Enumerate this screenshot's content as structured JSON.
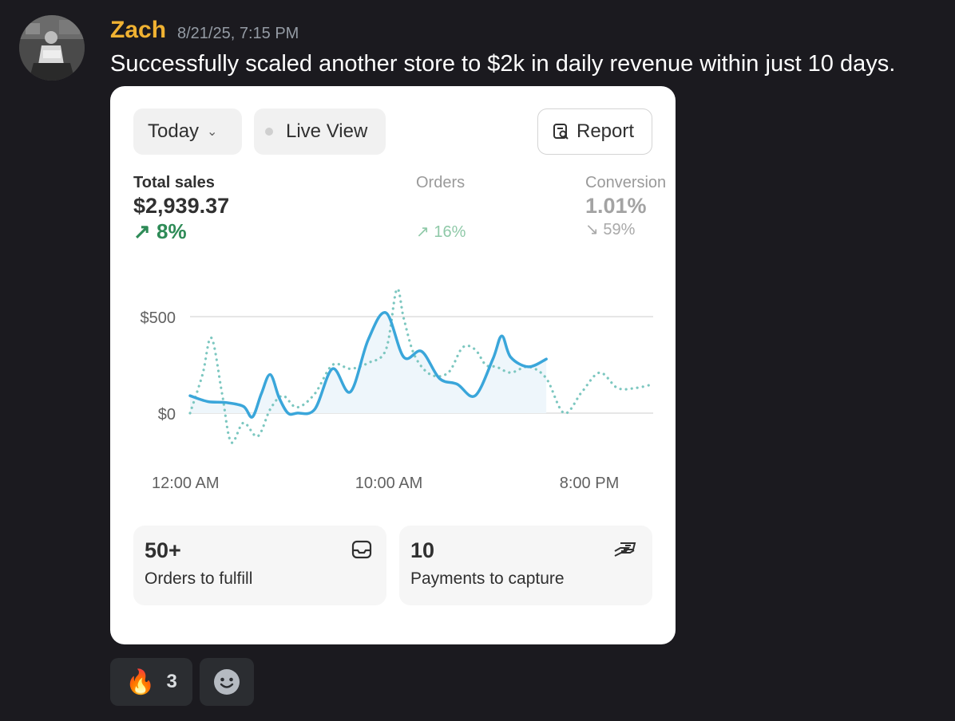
{
  "message": {
    "author": "Zach",
    "timestamp": "8/21/25, 7:15 PM",
    "text": "Successfully scaled another store to $2k in daily revenue within just 10 days.",
    "author_color": "#f0b232"
  },
  "card": {
    "date_filter": "Today",
    "live_view_label": "Live View",
    "report_label": "Report",
    "metrics": [
      {
        "label": "Total sales",
        "value": "$2,939.37",
        "change": "8%",
        "direction": "up"
      },
      {
        "label": "Orders",
        "value": "",
        "change": "16%",
        "direction": "up"
      },
      {
        "label": "Conversion",
        "value": "1.01%",
        "change": "59%",
        "direction": "down"
      }
    ],
    "tiles": [
      {
        "value": "50+",
        "label": "Orders to fulfill",
        "icon": "inbox-icon"
      },
      {
        "value": "10",
        "label": "Payments to capture",
        "icon": "hand-cash-icon"
      }
    ]
  },
  "chart_data": {
    "type": "line",
    "x_ticks": [
      "12:00 AM",
      "10:00 AM",
      "8:00 PM"
    ],
    "y_ticks": [
      "$500",
      "$0"
    ],
    "ylim": [
      -200,
      700
    ],
    "grid": true,
    "series": [
      {
        "style": "solid",
        "color": "#3aa6da",
        "points": [
          [
            0,
            90
          ],
          [
            1,
            60
          ],
          [
            2,
            55
          ],
          [
            3,
            35
          ],
          [
            3.5,
            -20
          ],
          [
            4,
            100
          ],
          [
            4.5,
            200
          ],
          [
            5,
            80
          ],
          [
            5.5,
            0
          ],
          [
            6,
            0
          ],
          [
            7,
            20
          ],
          [
            8,
            230
          ],
          [
            9,
            110
          ],
          [
            10,
            380
          ],
          [
            11,
            520
          ],
          [
            12,
            290
          ],
          [
            13,
            320
          ],
          [
            14,
            180
          ],
          [
            15,
            150
          ],
          [
            16,
            90
          ],
          [
            17,
            280
          ],
          [
            17.5,
            400
          ],
          [
            18,
            290
          ],
          [
            19,
            240
          ],
          [
            20,
            280
          ]
        ]
      },
      {
        "style": "dotted",
        "color": "#7cc7c0",
        "points": [
          [
            0,
            0
          ],
          [
            0.7,
            200
          ],
          [
            1.2,
            390
          ],
          [
            1.8,
            100
          ],
          [
            2.3,
            -150
          ],
          [
            3,
            -50
          ],
          [
            3.8,
            -120
          ],
          [
            4.5,
            20
          ],
          [
            5.2,
            90
          ],
          [
            6,
            30
          ],
          [
            7,
            100
          ],
          [
            8,
            250
          ],
          [
            9,
            230
          ],
          [
            10,
            260
          ],
          [
            11,
            330
          ],
          [
            11.6,
            640
          ],
          [
            12,
            490
          ],
          [
            12.6,
            300
          ],
          [
            13.5,
            200
          ],
          [
            14.5,
            210
          ],
          [
            15.3,
            340
          ],
          [
            16,
            330
          ],
          [
            16.6,
            250
          ],
          [
            17.2,
            240
          ],
          [
            18,
            210
          ],
          [
            19,
            240
          ],
          [
            20,
            180
          ],
          [
            21,
            0
          ],
          [
            22,
            110
          ],
          [
            23,
            210
          ],
          [
            24,
            130
          ],
          [
            25,
            130
          ],
          [
            26,
            150
          ]
        ]
      }
    ]
  },
  "reactions": [
    {
      "emoji": "🔥",
      "count": "3"
    }
  ]
}
